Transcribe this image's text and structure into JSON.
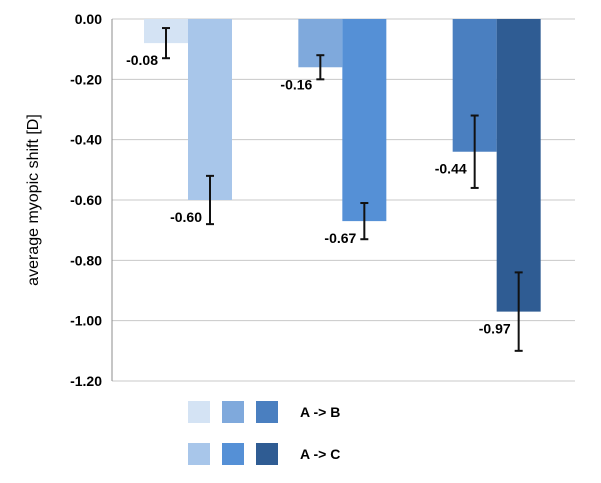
{
  "chart_data": {
    "type": "bar",
    "ylabel": "average myopic shift [D]",
    "ylim": [
      -1.2,
      0.0
    ],
    "yticks": [
      0.0,
      -0.2,
      -0.4,
      -0.6,
      -0.8,
      -1.0,
      -1.2
    ],
    "ytick_labels": [
      "0.00",
      "-0.20",
      "-0.40",
      "-0.60",
      "-0.80",
      "-1.00",
      "-1.20"
    ],
    "grid": true,
    "groups": [
      {
        "bars": [
          {
            "series": "A -> B",
            "value": -0.08,
            "label": "-0.08",
            "error_low": -0.13,
            "error_high": -0.03,
            "color": "#d4e3f4"
          },
          {
            "series": "A -> C",
            "value": -0.6,
            "label": "-0.60",
            "error_low": -0.68,
            "error_high": -0.52,
            "color": "#a8c6ea"
          }
        ]
      },
      {
        "bars": [
          {
            "series": "A -> B",
            "value": -0.16,
            "label": "-0.16",
            "error_low": -0.2,
            "error_high": -0.12,
            "color": "#7fa9dc"
          },
          {
            "series": "A -> C",
            "value": -0.67,
            "label": "-0.67",
            "error_low": -0.73,
            "error_high": -0.61,
            "color": "#5590d6"
          }
        ]
      },
      {
        "bars": [
          {
            "series": "A -> B",
            "value": -0.44,
            "label": "-0.44",
            "error_low": -0.56,
            "error_high": -0.32,
            "color": "#4a7fc0"
          },
          {
            "series": "A -> C",
            "value": -0.97,
            "label": "-0.97",
            "error_low": -1.1,
            "error_high": -0.84,
            "color": "#2f5c93"
          }
        ]
      }
    ],
    "legend": {
      "position": "bottom-left",
      "entries": [
        {
          "label": "A -> B",
          "colors": [
            "#d4e3f4",
            "#7fa9dc",
            "#4a7fc0"
          ]
        },
        {
          "label": "A -> C",
          "colors": [
            "#a8c6ea",
            "#5590d6",
            "#2f5c93"
          ]
        }
      ]
    }
  }
}
